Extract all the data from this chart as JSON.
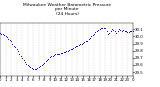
{
  "title": "Milwaukee Weather Barometric Pressure\nper Minute\n(24 Hours)",
  "title_fontsize": 3.2,
  "bg_color": "#ffffff",
  "plot_bg_color": "#ffffff",
  "dot_color": "#0000cc",
  "dot_size": 0.5,
  "grid_color": "#bbbbbb",
  "xlabel_fontsize": 2.8,
  "ylabel_fontsize": 2.8,
  "xlim": [
    0,
    1440
  ],
  "ylim": [
    29.45,
    30.18
  ],
  "yticks": [
    29.5,
    29.6,
    29.7,
    29.8,
    29.9,
    30.0,
    30.1
  ],
  "xticks": [
    0,
    60,
    120,
    180,
    240,
    300,
    360,
    420,
    480,
    540,
    600,
    660,
    720,
    780,
    840,
    900,
    960,
    1020,
    1080,
    1140,
    1200,
    1260,
    1320,
    1380,
    1440
  ],
  "xtick_labels": [
    "0",
    "1",
    "2",
    "3",
    "4",
    "5",
    "6",
    "7",
    "8",
    "9",
    "10",
    "11",
    "12",
    "13",
    "14",
    "15",
    "16",
    "17",
    "18",
    "19",
    "20",
    "21",
    "22",
    "23",
    "0"
  ],
  "pressure_data": [
    [
      0,
      30.05
    ],
    [
      15,
      30.04
    ],
    [
      30,
      30.03
    ],
    [
      45,
      30.02
    ],
    [
      60,
      30.01
    ],
    [
      75,
      29.99
    ],
    [
      90,
      29.97
    ],
    [
      105,
      29.95
    ],
    [
      120,
      29.93
    ],
    [
      135,
      29.9
    ],
    [
      150,
      29.87
    ],
    [
      165,
      29.85
    ],
    [
      180,
      29.82
    ],
    [
      195,
      29.79
    ],
    [
      210,
      29.76
    ],
    [
      225,
      29.73
    ],
    [
      240,
      29.7
    ],
    [
      255,
      29.67
    ],
    [
      270,
      29.64
    ],
    [
      285,
      29.62
    ],
    [
      300,
      29.6
    ],
    [
      315,
      29.58
    ],
    [
      330,
      29.57
    ],
    [
      345,
      29.56
    ],
    [
      360,
      29.55
    ],
    [
      375,
      29.55
    ],
    [
      390,
      29.55
    ],
    [
      405,
      29.56
    ],
    [
      420,
      29.57
    ],
    [
      435,
      29.58
    ],
    [
      450,
      29.6
    ],
    [
      465,
      29.62
    ],
    [
      480,
      29.63
    ],
    [
      495,
      29.65
    ],
    [
      510,
      29.67
    ],
    [
      525,
      29.69
    ],
    [
      540,
      29.71
    ],
    [
      555,
      29.72
    ],
    [
      570,
      29.73
    ],
    [
      585,
      29.74
    ],
    [
      600,
      29.75
    ],
    [
      615,
      29.75
    ],
    [
      630,
      29.76
    ],
    [
      645,
      29.76
    ],
    [
      660,
      29.77
    ],
    [
      675,
      29.77
    ],
    [
      690,
      29.78
    ],
    [
      705,
      29.78
    ],
    [
      720,
      29.79
    ],
    [
      735,
      29.8
    ],
    [
      750,
      29.81
    ],
    [
      765,
      29.82
    ],
    [
      780,
      29.83
    ],
    [
      795,
      29.84
    ],
    [
      810,
      29.85
    ],
    [
      825,
      29.86
    ],
    [
      840,
      29.87
    ],
    [
      855,
      29.88
    ],
    [
      870,
      29.89
    ],
    [
      885,
      29.9
    ],
    [
      900,
      29.91
    ],
    [
      915,
      29.92
    ],
    [
      930,
      29.93
    ],
    [
      945,
      29.94
    ],
    [
      960,
      29.96
    ],
    [
      975,
      29.98
    ],
    [
      990,
      30.0
    ],
    [
      1005,
      30.02
    ],
    [
      1020,
      30.04
    ],
    [
      1035,
      30.06
    ],
    [
      1050,
      30.08
    ],
    [
      1065,
      30.09
    ],
    [
      1080,
      30.1
    ],
    [
      1095,
      30.11
    ],
    [
      1110,
      30.11
    ],
    [
      1125,
      30.12
    ],
    [
      1140,
      30.12
    ],
    [
      1155,
      30.07
    ],
    [
      1170,
      30.03
    ],
    [
      1185,
      30.05
    ],
    [
      1200,
      30.08
    ],
    [
      1215,
      30.1
    ],
    [
      1230,
      30.09
    ],
    [
      1245,
      30.07
    ],
    [
      1260,
      30.05
    ],
    [
      1275,
      30.08
    ],
    [
      1290,
      30.1
    ],
    [
      1305,
      30.09
    ],
    [
      1320,
      30.08
    ],
    [
      1335,
      30.09
    ],
    [
      1350,
      30.08
    ],
    [
      1365,
      30.07
    ],
    [
      1380,
      30.06
    ],
    [
      1395,
      30.06
    ],
    [
      1410,
      30.07
    ],
    [
      1425,
      30.08
    ],
    [
      1440,
      30.07
    ]
  ]
}
